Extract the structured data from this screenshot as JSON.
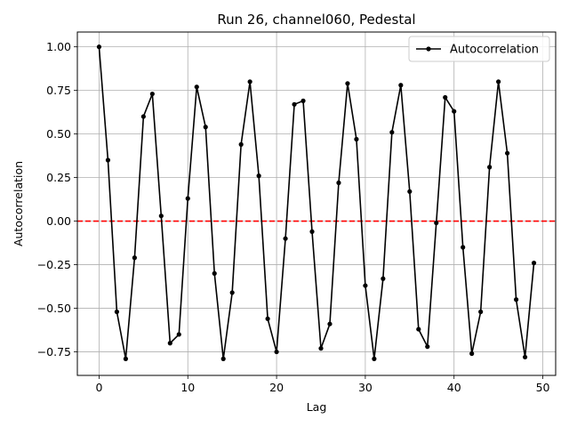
{
  "chart_data": {
    "type": "line",
    "title": "Run 26, channel060, Pedestal",
    "xlabel": "Lag",
    "ylabel": "Autocorrelation",
    "xlim": [
      -2.45,
      51.45
    ],
    "ylim": [
      -0.885,
      1.085
    ],
    "xticks": [
      0,
      10,
      20,
      30,
      40,
      50
    ],
    "yticks": [
      -0.75,
      -0.5,
      -0.25,
      0.0,
      0.25,
      0.5,
      0.75,
      1.0
    ],
    "ytick_labels": [
      "−0.75",
      "−0.50",
      "−0.25",
      "0.00",
      "0.25",
      "0.50",
      "0.75",
      "1.00"
    ],
    "grid": true,
    "legend_position": "top-right",
    "series": [
      {
        "name": "Autocorrelation",
        "color": "#000000",
        "marker": "circle",
        "x": [
          0,
          1,
          2,
          3,
          4,
          5,
          6,
          7,
          8,
          9,
          10,
          11,
          12,
          13,
          14,
          15,
          16,
          17,
          18,
          19,
          20,
          21,
          22,
          23,
          24,
          25,
          26,
          27,
          28,
          29,
          30,
          31,
          32,
          33,
          34,
          35,
          36,
          37,
          38,
          39,
          40,
          41,
          42,
          43,
          44,
          45,
          46,
          47,
          48,
          49
        ],
        "y": [
          1.0,
          0.35,
          -0.52,
          -0.79,
          -0.21,
          0.6,
          0.73,
          0.03,
          -0.7,
          -0.65,
          0.13,
          0.77,
          0.54,
          -0.3,
          -0.79,
          -0.41,
          0.44,
          0.8,
          0.26,
          -0.56,
          -0.75,
          -0.1,
          0.67,
          0.69,
          -0.06,
          -0.73,
          -0.59,
          0.22,
          0.79,
          0.47,
          -0.37,
          -0.79,
          -0.33,
          0.51,
          0.78,
          0.17,
          -0.62,
          -0.72,
          -0.01,
          0.71,
          0.63,
          -0.15,
          -0.76,
          -0.52,
          0.31,
          0.8,
          0.39,
          -0.45,
          -0.78,
          -0.24
        ]
      }
    ],
    "reference_line": {
      "y": 0.0,
      "color": "#ff0000",
      "style": "dashed"
    }
  }
}
